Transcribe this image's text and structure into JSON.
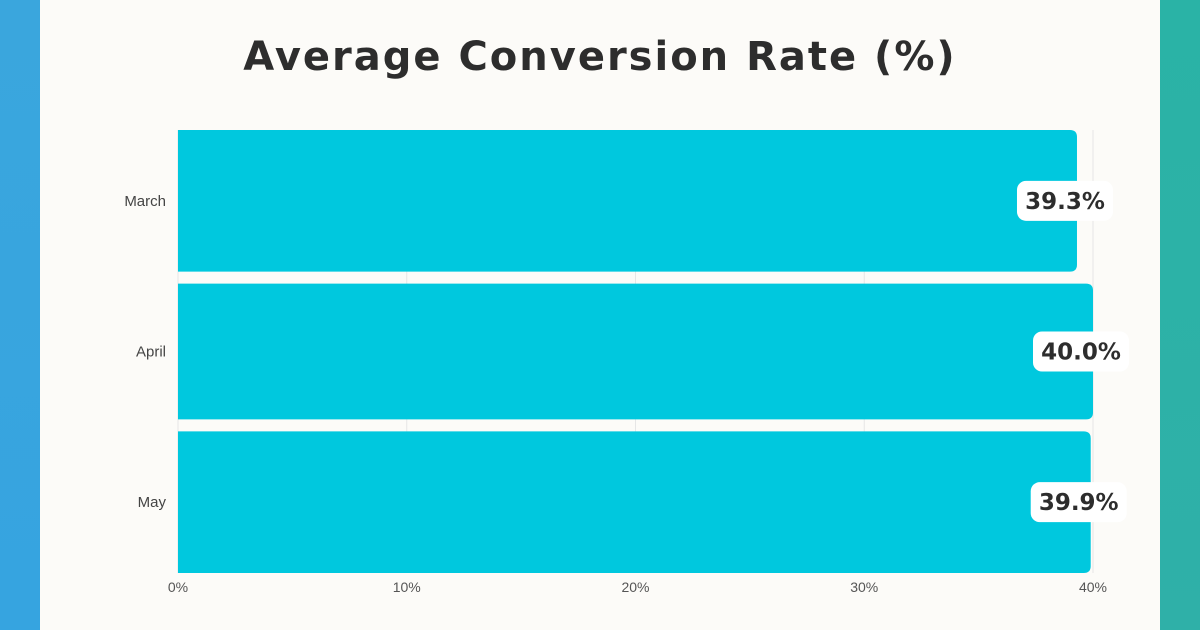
{
  "chart_data": {
    "type": "bar",
    "orientation": "horizontal",
    "title": "Average Conversion Rate (%)",
    "categories": [
      "March",
      "April",
      "May"
    ],
    "values": [
      39.3,
      40.0,
      39.9
    ],
    "value_labels": [
      "39.3%",
      "40.0%",
      "39.9%"
    ],
    "xlim": [
      0,
      40
    ],
    "xticks": [
      0,
      10,
      20,
      30,
      40
    ],
    "xtick_labels": [
      "0%",
      "10%",
      "20%",
      "30%",
      "40%"
    ],
    "grid": true,
    "bar_color": "#00c8de"
  },
  "colors": {
    "background": "#fcfbf8",
    "left_stripe": "#38a5df",
    "right_stripe": "#2bb2a7",
    "title": "#2d2d2d",
    "grid": "#e6e6e6"
  }
}
